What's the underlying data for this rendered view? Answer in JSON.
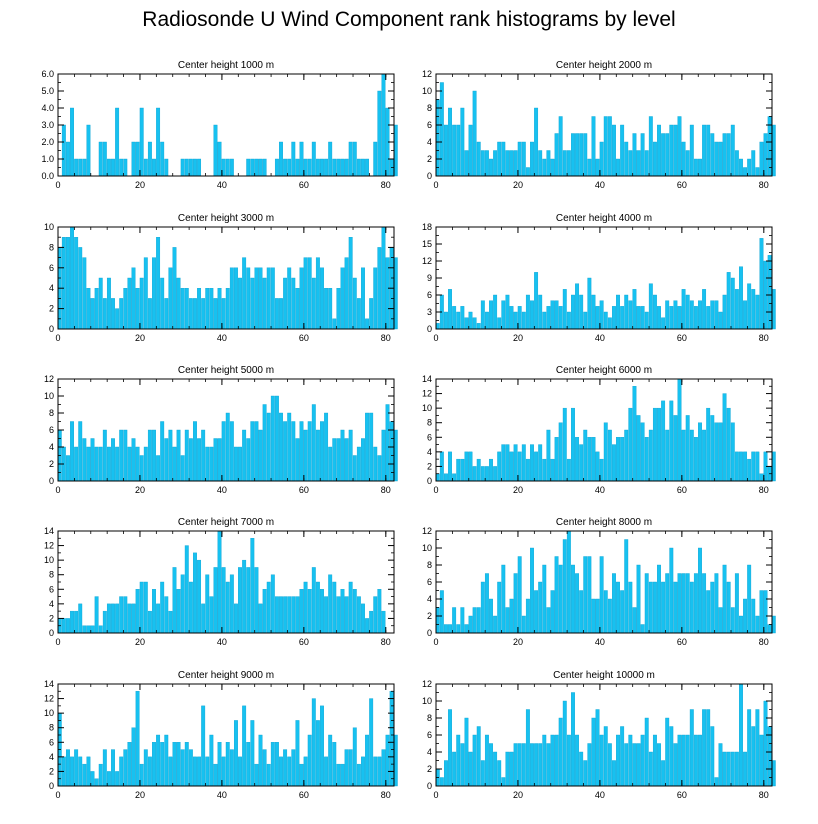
{
  "page_title": "Radiosonde U Wind Component rank histograms by level",
  "colors": {
    "bar": "#17c1f0",
    "bar_edge": "#0ea3d3",
    "axis": "#000000"
  },
  "chart_data": [
    {
      "type": "bar",
      "title": "Center height 1000 m",
      "xlim": [
        0,
        82
      ],
      "ylim": [
        0,
        6
      ],
      "xticks": [
        0,
        20,
        40,
        60,
        80
      ],
      "yticks": [
        0,
        1,
        2,
        3,
        4,
        5,
        6
      ],
      "ytick_labels": [
        "0.0",
        "1.0",
        "2.0",
        "3.0",
        "4.0",
        "5.0",
        "6.0"
      ],
      "values": [
        0,
        3,
        2,
        4,
        1,
        1,
        1,
        3,
        0,
        0,
        2,
        2,
        1,
        1,
        4,
        1,
        1,
        0,
        2,
        2,
        4,
        1,
        2,
        1,
        4,
        2,
        1,
        0,
        0,
        0,
        1,
        1,
        1,
        1,
        1,
        0,
        0,
        0,
        3,
        2,
        1,
        1,
        1,
        0,
        0,
        0,
        1,
        1,
        1,
        1,
        1,
        0,
        0,
        1,
        2,
        1,
        1,
        2,
        1,
        2,
        1,
        1,
        2,
        1,
        1,
        1,
        2,
        1,
        1,
        1,
        1,
        2,
        2,
        1,
        1,
        1,
        0,
        2,
        5,
        6,
        4,
        1,
        3
      ]
    },
    {
      "type": "bar",
      "title": "Center height 2000 m",
      "xlim": [
        0,
        82
      ],
      "ylim": [
        0,
        12
      ],
      "xticks": [
        0,
        20,
        40,
        60,
        80
      ],
      "yticks": [
        0,
        2,
        4,
        6,
        8,
        10,
        12
      ],
      "ytick_labels": [
        "0",
        "2",
        "4",
        "6",
        "8",
        "10",
        "12"
      ],
      "values": [
        9,
        11,
        6,
        8,
        6,
        6,
        8,
        3,
        6,
        10,
        4,
        3,
        3,
        2,
        3,
        4,
        4,
        3,
        3,
        3,
        4,
        4,
        1,
        4,
        8,
        3,
        2,
        3,
        2,
        5,
        7,
        3,
        3,
        5,
        5,
        5,
        5,
        2,
        7,
        2,
        4,
        7,
        7,
        6,
        2,
        6,
        4,
        3,
        5,
        3,
        5,
        3,
        7,
        4,
        6,
        5,
        5,
        6,
        6,
        7,
        4,
        3,
        6,
        2,
        2,
        6,
        6,
        5,
        4,
        4,
        5,
        5,
        6,
        3,
        2,
        1,
        2,
        3,
        1,
        4,
        5,
        7,
        6
      ]
    },
    {
      "type": "bar",
      "title": "Center height 3000 m",
      "xlim": [
        0,
        82
      ],
      "ylim": [
        0,
        10
      ],
      "xticks": [
        0,
        20,
        40,
        60,
        80
      ],
      "yticks": [
        0,
        2,
        4,
        6,
        8,
        10
      ],
      "ytick_labels": [
        "0",
        "2",
        "4",
        "6",
        "8",
        "10"
      ],
      "values": [
        8,
        9,
        9,
        10,
        9,
        8,
        7,
        4,
        3,
        4,
        5,
        3,
        5,
        3,
        2,
        3,
        4,
        5,
        6,
        4,
        5,
        7,
        3,
        7,
        9,
        5,
        3,
        6,
        8,
        5,
        4,
        4,
        3,
        3,
        4,
        3,
        4,
        4,
        3,
        4,
        3,
        4,
        6,
        6,
        5,
        7,
        6,
        5,
        6,
        6,
        5,
        6,
        6,
        3,
        3,
        5,
        6,
        5,
        4,
        6,
        7,
        7,
        5,
        7,
        6,
        4,
        4,
        1,
        4,
        6,
        7,
        9,
        5,
        3,
        6,
        1,
        3,
        6,
        8,
        10,
        7,
        8,
        7
      ]
    },
    {
      "type": "bar",
      "title": "Center height 4000 m",
      "xlim": [
        0,
        82
      ],
      "ylim": [
        0,
        18
      ],
      "xticks": [
        0,
        20,
        40,
        60,
        80
      ],
      "yticks": [
        0,
        3,
        6,
        9,
        12,
        15,
        18
      ],
      "ytick_labels": [
        "0",
        "3",
        "6",
        "9",
        "12",
        "15",
        "18"
      ],
      "values": [
        1,
        6,
        3,
        7,
        4,
        3,
        4,
        2,
        3,
        2,
        1,
        5,
        3,
        5,
        6,
        2,
        5,
        6,
        4,
        3,
        4,
        3,
        6,
        5,
        10,
        6,
        3,
        4,
        5,
        5,
        4,
        7,
        3,
        6,
        8,
        6,
        3,
        9,
        6,
        4,
        5,
        3,
        2,
        4,
        6,
        4,
        6,
        5,
        7,
        4,
        4,
        3,
        8,
        6,
        4,
        2,
        5,
        4,
        5,
        4,
        7,
        6,
        5,
        4,
        5,
        7,
        4,
        5,
        5,
        3,
        6,
        10,
        9,
        7,
        11,
        5,
        8,
        7,
        6,
        16,
        12,
        13,
        7
      ]
    },
    {
      "type": "bar",
      "title": "Center height 5000 m",
      "xlim": [
        0,
        82
      ],
      "ylim": [
        0,
        12
      ],
      "xticks": [
        0,
        20,
        40,
        60,
        80
      ],
      "yticks": [
        0,
        2,
        4,
        6,
        8,
        10,
        12
      ],
      "ytick_labels": [
        "0",
        "2",
        "4",
        "6",
        "8",
        "10",
        "12"
      ],
      "values": [
        6,
        4,
        3,
        7,
        4,
        7,
        5,
        4,
        5,
        4,
        4,
        6,
        4,
        5,
        4,
        6,
        6,
        4,
        5,
        4,
        3,
        4,
        6,
        6,
        3,
        7,
        5,
        6,
        4,
        6,
        3,
        6,
        5,
        7,
        5,
        6,
        4,
        4,
        5,
        5,
        7,
        8,
        7,
        4,
        4,
        6,
        5,
        7,
        7,
        6,
        9,
        8,
        10,
        10,
        8,
        7,
        8,
        7,
        5,
        7,
        6,
        7,
        9,
        6,
        7,
        8,
        4,
        5,
        5,
        6,
        5,
        6,
        3,
        4,
        5,
        8,
        8,
        4,
        3,
        6,
        9,
        7,
        6
      ]
    },
    {
      "type": "bar",
      "title": "Center height 6000 m",
      "xlim": [
        0,
        82
      ],
      "ylim": [
        0,
        14
      ],
      "xticks": [
        0,
        20,
        40,
        60,
        80
      ],
      "yticks": [
        0,
        2,
        4,
        6,
        8,
        10,
        12,
        14
      ],
      "ytick_labels": [
        "0",
        "2",
        "4",
        "6",
        "8",
        "10",
        "12",
        "14"
      ],
      "values": [
        1,
        4,
        1,
        4,
        1,
        3,
        3,
        4,
        4,
        2,
        3,
        2,
        2,
        3,
        2,
        4,
        5,
        5,
        4,
        5,
        4,
        5,
        3,
        5,
        4,
        5,
        3,
        7,
        3,
        6,
        8,
        10,
        3,
        10,
        6,
        5,
        7,
        6,
        6,
        4,
        3,
        8,
        7,
        5,
        6,
        6,
        7,
        10,
        13,
        9,
        8,
        6,
        7,
        10,
        10,
        11,
        7,
        11,
        9,
        14,
        7,
        9,
        7,
        6,
        8,
        7,
        10,
        9,
        8,
        8,
        12,
        10,
        8,
        4,
        4,
        4,
        3,
        4,
        4,
        1,
        4,
        2,
        4
      ]
    },
    {
      "type": "bar",
      "title": "Center height 7000 m",
      "xlim": [
        0,
        82
      ],
      "ylim": [
        0,
        14
      ],
      "xticks": [
        0,
        20,
        40,
        60,
        80
      ],
      "yticks": [
        0,
        2,
        4,
        6,
        8,
        10,
        12,
        14
      ],
      "ytick_labels": [
        "0",
        "2",
        "4",
        "6",
        "8",
        "10",
        "12",
        "14"
      ],
      "values": [
        2,
        2,
        2,
        3,
        3,
        4,
        1,
        1,
        1,
        5,
        1,
        3,
        4,
        4,
        4,
        5,
        5,
        4,
        4,
        6,
        7,
        7,
        3,
        6,
        4,
        7,
        5,
        3,
        9,
        6,
        8,
        12,
        7,
        11,
        10,
        4,
        8,
        5,
        9,
        14,
        9,
        7,
        8,
        4,
        9,
        10,
        9,
        13,
        9,
        4,
        6,
        7,
        8,
        5,
        5,
        5,
        5,
        5,
        5,
        6,
        7,
        6,
        9,
        7,
        6,
        5,
        8,
        7,
        5,
        6,
        5,
        7,
        6,
        5,
        4,
        2,
        3,
        5,
        6,
        3,
        0,
        0,
        0
      ]
    },
    {
      "type": "bar",
      "title": "Center height 8000 m",
      "xlim": [
        0,
        82
      ],
      "ylim": [
        0,
        12
      ],
      "xticks": [
        0,
        20,
        40,
        60,
        80
      ],
      "yticks": [
        0,
        2,
        4,
        6,
        8,
        10,
        12
      ],
      "ytick_labels": [
        "0",
        "2",
        "4",
        "6",
        "8",
        "10",
        "12"
      ],
      "values": [
        3,
        5,
        1,
        1,
        3,
        1,
        3,
        1,
        2,
        3,
        3,
        6,
        7,
        4,
        2,
        6,
        8,
        3,
        4,
        7,
        9,
        2,
        4,
        10,
        5,
        6,
        8,
        3,
        5,
        9,
        8,
        11,
        12,
        8,
        7,
        5,
        9,
        9,
        4,
        4,
        9,
        5,
        4,
        7,
        6,
        5,
        11,
        6,
        3,
        8,
        1,
        7,
        6,
        6,
        8,
        6,
        7,
        10,
        6,
        7,
        7,
        7,
        6,
        7,
        10,
        7,
        5,
        6,
        7,
        3,
        8,
        6,
        3,
        7,
        2,
        4,
        8,
        4,
        2,
        5,
        5,
        1,
        2
      ]
    },
    {
      "type": "bar",
      "title": "Center height 9000 m",
      "xlim": [
        0,
        82
      ],
      "ylim": [
        0,
        14
      ],
      "xticks": [
        0,
        20,
        40,
        60,
        80
      ],
      "yticks": [
        0,
        2,
        4,
        6,
        8,
        10,
        12,
        14
      ],
      "ytick_labels": [
        "0",
        "2",
        "4",
        "6",
        "8",
        "10",
        "12",
        "14"
      ],
      "values": [
        10,
        4,
        5,
        4,
        5,
        4,
        3,
        4,
        2,
        1,
        3,
        5,
        2,
        5,
        2,
        4,
        5,
        6,
        8,
        13,
        3,
        5,
        4,
        6,
        7,
        6,
        7,
        4,
        6,
        6,
        5,
        6,
        5,
        4,
        4,
        11,
        4,
        7,
        3,
        6,
        4,
        6,
        5,
        9,
        4,
        11,
        6,
        9,
        3,
        7,
        5,
        3,
        6,
        6,
        4,
        5,
        4,
        5,
        9,
        3,
        4,
        7,
        12,
        9,
        11,
        4,
        7,
        6,
        3,
        3,
        5,
        5,
        8,
        3,
        4,
        7,
        12,
        4,
        4,
        5,
        7,
        13,
        7
      ]
    },
    {
      "type": "bar",
      "title": "Center height 10000 m",
      "xlim": [
        0,
        82
      ],
      "ylim": [
        0,
        12
      ],
      "xticks": [
        0,
        20,
        40,
        60,
        80
      ],
      "yticks": [
        0,
        2,
        4,
        6,
        8,
        10,
        12
      ],
      "ytick_labels": [
        "0",
        "2",
        "4",
        "6",
        "8",
        "10",
        "12"
      ],
      "values": [
        2,
        1,
        3,
        9,
        4,
        6,
        5,
        8,
        4,
        6,
        7,
        3,
        6,
        5,
        4,
        3,
        1,
        4,
        4,
        5,
        5,
        5,
        9,
        5,
        5,
        5,
        6,
        5,
        6,
        6,
        8,
        10,
        6,
        11,
        6,
        4,
        3,
        5,
        8,
        9,
        6,
        7,
        5,
        3,
        6,
        7,
        5,
        6,
        5,
        5,
        6,
        8,
        4,
        6,
        5,
        3,
        8,
        7,
        5,
        6,
        6,
        6,
        9,
        6,
        6,
        9,
        9,
        7,
        1,
        5,
        4,
        4,
        4,
        4,
        12,
        4,
        9,
        7,
        9,
        6,
        10,
        7,
        3
      ]
    }
  ]
}
